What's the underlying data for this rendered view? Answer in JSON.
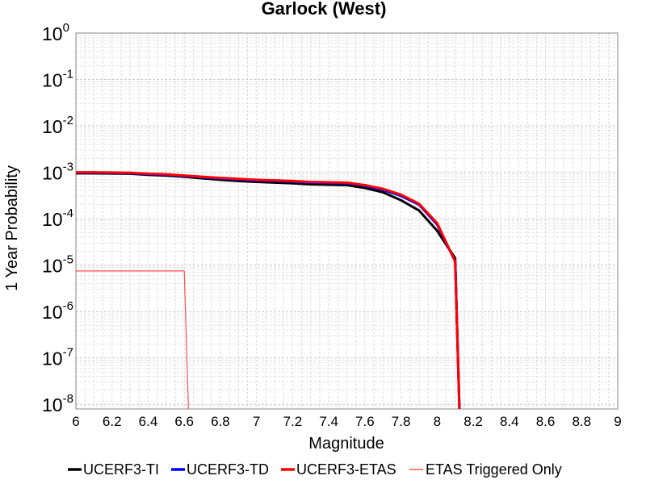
{
  "chart_data": {
    "type": "line",
    "title": "Garlock (West)",
    "xlabel": "Magnitude",
    "ylabel": "1 Year Probability",
    "xlim": [
      6,
      9
    ],
    "ylim_log10": [
      -8.1,
      0
    ],
    "y_scale": "log",
    "grid": true,
    "legend_position": "bottom",
    "x_ticks": [
      "6",
      "6.2",
      "6.4",
      "6.6",
      "6.8",
      "7",
      "7.2",
      "7.4",
      "7.6",
      "7.8",
      "8",
      "8.2",
      "8.4",
      "8.6",
      "8.8",
      "9"
    ],
    "y_ticks": [
      {
        "base": "10",
        "exp": "0"
      },
      {
        "base": "10",
        "exp": "-1"
      },
      {
        "base": "10",
        "exp": "-2"
      },
      {
        "base": "10",
        "exp": "-3"
      },
      {
        "base": "10",
        "exp": "-4"
      },
      {
        "base": "10",
        "exp": "-5"
      },
      {
        "base": "10",
        "exp": "-6"
      },
      {
        "base": "10",
        "exp": "-7"
      },
      {
        "base": "10",
        "exp": "-8"
      }
    ],
    "series": [
      {
        "name": "UCERF3-TI",
        "color": "#000000",
        "x": [
          6.0,
          6.1,
          6.2,
          6.3,
          6.4,
          6.5,
          6.6,
          6.7,
          6.8,
          6.9,
          7.0,
          7.1,
          7.2,
          7.3,
          7.4,
          7.5,
          7.6,
          7.7,
          7.8,
          7.9,
          8.0,
          8.1,
          8.13
        ],
        "y": [
          0.00095,
          0.00095,
          0.00094,
          0.00093,
          0.00088,
          0.00085,
          0.0008,
          0.00074,
          0.00069,
          0.00065,
          0.00062,
          0.0006,
          0.00058,
          0.00055,
          0.00054,
          0.00053,
          0.00046,
          0.00037,
          0.00025,
          0.00015,
          5.5e-05,
          1.4e-05,
          1e-09
        ]
      },
      {
        "name": "UCERF3-TD",
        "color": "#0000ff",
        "x": [
          6.0,
          6.1,
          6.2,
          6.3,
          6.4,
          6.5,
          6.6,
          6.7,
          6.8,
          6.9,
          7.0,
          7.1,
          7.2,
          7.3,
          7.4,
          7.5,
          7.6,
          7.7,
          7.8,
          7.9,
          8.0,
          8.1,
          8.13
        ],
        "y": [
          0.00098,
          0.00098,
          0.00097,
          0.00096,
          0.00091,
          0.00089,
          0.00083,
          0.00078,
          0.00074,
          0.0007,
          0.00067,
          0.00065,
          0.00063,
          0.0006,
          0.00059,
          0.00058,
          0.00051,
          0.00042,
          0.00031,
          0.0002,
          7.5e-05,
          1.2e-05,
          1e-09
        ]
      },
      {
        "name": "UCERF3-ETAS",
        "color": "#ff0000",
        "x": [
          6.0,
          6.1,
          6.2,
          6.3,
          6.4,
          6.5,
          6.6,
          6.7,
          6.8,
          6.9,
          7.0,
          7.1,
          7.2,
          7.3,
          7.4,
          7.5,
          7.6,
          7.7,
          7.8,
          7.9,
          8.0,
          8.1,
          8.13
        ],
        "y": [
          0.001,
          0.001,
          0.00099,
          0.00098,
          0.00093,
          0.00091,
          0.00085,
          0.0008,
          0.00076,
          0.00072,
          0.00069,
          0.00067,
          0.00065,
          0.00062,
          0.00061,
          0.0006,
          0.00053,
          0.00044,
          0.00033,
          0.00021,
          8e-05,
          1.2e-05,
          1e-09
        ]
      },
      {
        "name": "ETAS Triggered Only",
        "color": "#ff5050",
        "x": [
          6.0,
          6.6,
          6.63
        ],
        "y": [
          7.5e-06,
          7.5e-06,
          1e-09
        ]
      }
    ]
  }
}
